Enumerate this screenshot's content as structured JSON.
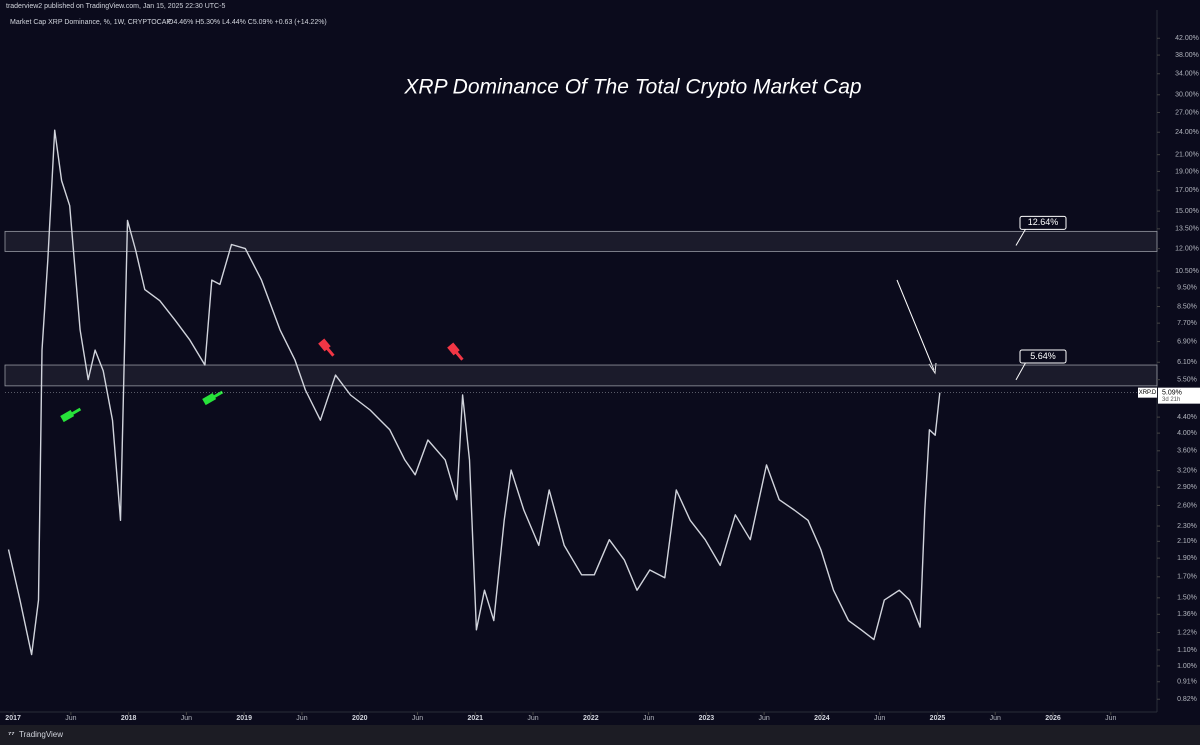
{
  "header": {
    "publisher": "traderview2 published on TradingView.com, Jan 15, 2025 22:30 UTC-5",
    "legend": "Market Cap XRP Dominance, %, 1W, CRYPTOCAP",
    "ohlc": "O4.46% H5.30% L4.44% C5.09% +0.63 (+14.22%)"
  },
  "footer": {
    "brand": "TradingView"
  },
  "chart_data": {
    "type": "line",
    "title": "XRP Dominance Of The Total Crypto Market Cap",
    "log_scale": true,
    "grid": false,
    "series": [
      {
        "name": "XRP.D",
        "color": "#d1d4dc",
        "x": [
          2016.96,
          2017.06,
          2017.16,
          2017.22,
          2017.25,
          2017.3,
          2017.36,
          2017.42,
          2017.49,
          2017.58,
          2017.65,
          2017.71,
          2017.78,
          2017.86,
          2017.93,
          2017.99,
          2018.06,
          2018.14,
          2018.27,
          2018.4,
          2018.53,
          2018.66,
          2018.72,
          2018.79,
          2018.89,
          2019.01,
          2019.15,
          2019.31,
          2019.44,
          2019.53,
          2019.66,
          2019.79,
          2019.92,
          2020.09,
          2020.26,
          2020.39,
          2020.48,
          2020.59,
          2020.74,
          2020.84,
          2020.89,
          2020.95,
          2021.01,
          2021.08,
          2021.16,
          2021.25,
          2021.31,
          2021.42,
          2021.55,
          2021.64,
          2021.77,
          2021.92,
          2022.03,
          2022.16,
          2022.29,
          2022.4,
          2022.51,
          2022.64,
          2022.74,
          2022.86,
          2022.99,
          2023.12,
          2023.25,
          2023.38,
          2023.52,
          2023.63,
          2023.76,
          2023.88,
          2023.99,
          2024.1,
          2024.23,
          2024.34,
          2024.45,
          2024.54,
          2024.67,
          2024.76,
          2024.85,
          2024.89,
          2024.93,
          2024.98,
          2025.02
        ],
        "values": [
          2.0,
          1.48,
          1.07,
          1.48,
          6.56,
          11.2,
          24.3,
          18.0,
          15.5,
          7.4,
          5.5,
          6.56,
          5.8,
          4.32,
          2.38,
          14.2,
          11.9,
          9.4,
          8.8,
          7.85,
          6.96,
          6.0,
          9.95,
          9.7,
          12.3,
          12.0,
          9.95,
          7.4,
          6.18,
          5.17,
          4.32,
          5.65,
          5.02,
          4.59,
          4.08,
          3.41,
          3.12,
          3.84,
          3.41,
          2.69,
          5.02,
          3.41,
          1.24,
          1.57,
          1.31,
          2.38,
          3.21,
          2.53,
          2.05,
          2.85,
          2.05,
          1.72,
          1.72,
          2.12,
          1.88,
          1.57,
          1.77,
          1.69,
          2.85,
          2.38,
          2.12,
          1.82,
          2.46,
          2.12,
          3.31,
          2.69,
          2.53,
          2.38,
          2.0,
          1.57,
          1.31,
          1.24,
          1.17,
          1.48,
          1.57,
          1.48,
          1.26,
          2.53,
          4.08,
          3.95,
          5.09
        ]
      }
    ],
    "last_label": {
      "value": 5.09,
      "label": "5.09%",
      "countdown": "3d 21h"
    },
    "zones": [
      {
        "low": 11.8,
        "high": 13.3,
        "label": "12.64%"
      },
      {
        "low": 5.3,
        "high": 6.0,
        "label": "5.64%"
      }
    ],
    "xlim": [
      2016.93,
      2026.9
    ],
    "xticks": [
      2017,
      {
        "value": 2017.5,
        "label": "Jun"
      },
      2018,
      {
        "value": 2018.5,
        "label": "Jun"
      },
      2019,
      {
        "value": 2019.5,
        "label": "Jun"
      },
      2020,
      {
        "value": 2020.5,
        "label": "Jun"
      },
      2021,
      {
        "value": 2021.5,
        "label": "Jun"
      },
      2022,
      {
        "value": 2022.5,
        "label": "Jun"
      },
      2023,
      {
        "value": 2023.5,
        "label": "Jun"
      },
      2024,
      {
        "value": 2024.5,
        "label": "Jun"
      },
      2025,
      {
        "value": 2025.5,
        "label": "Jun"
      },
      2026,
      {
        "value": 2026.5,
        "label": "Jun"
      }
    ],
    "ylim": [
      0.76,
      49.7
    ],
    "yticks": [
      {
        "value": 42,
        "label": "42.00%"
      },
      {
        "value": 38,
        "label": "38.00%"
      },
      {
        "value": 34,
        "label": "34.00%"
      },
      {
        "value": 30,
        "label": "30.00%"
      },
      {
        "value": 27,
        "label": "27.00%"
      },
      {
        "value": 24,
        "label": "24.00%"
      },
      {
        "value": 21,
        "label": "21.00%"
      },
      {
        "value": 19,
        "label": "19.00%"
      },
      {
        "value": 17,
        "label": "17.00%"
      },
      {
        "value": 15,
        "label": "15.00%"
      },
      {
        "value": 13.5,
        "label": "13.50%"
      },
      {
        "value": 12,
        "label": "12.00%"
      },
      {
        "value": 10.5,
        "label": "10.50%"
      },
      {
        "value": 9.5,
        "label": "9.50%"
      },
      {
        "value": 8.5,
        "label": "8.50%"
      },
      {
        "value": 7.7,
        "label": "7.70%"
      },
      {
        "value": 6.9,
        "label": "6.90%"
      },
      {
        "value": 6.1,
        "label": "6.10%"
      },
      {
        "value": 5.5,
        "label": "5.50%"
      },
      {
        "value": 4.4,
        "label": "4.40%"
      },
      {
        "value": 4,
        "label": "4.00%"
      },
      {
        "value": 3.6,
        "label": "3.60%"
      },
      {
        "value": 3.2,
        "label": "3.20%"
      },
      {
        "value": 2.9,
        "label": "2.90%"
      },
      {
        "value": 2.6,
        "label": "2.60%"
      },
      {
        "value": 2.3,
        "label": "2.30%"
      },
      {
        "value": 2.1,
        "label": "2.10%"
      },
      {
        "value": 1.9,
        "label": "1.90%"
      },
      {
        "value": 1.7,
        "label": "1.70%"
      },
      {
        "value": 1.5,
        "label": "1.50%"
      },
      {
        "value": 1.36,
        "label": "1.36%"
      },
      {
        "value": 1.22,
        "label": "1.22%"
      },
      {
        "value": 1.1,
        "label": "1.10%"
      },
      {
        "value": 1,
        "label": "1.00%"
      },
      {
        "value": 0.91,
        "label": "0.91%"
      },
      {
        "value": 0.82,
        "label": "0.82%"
      }
    ]
  }
}
